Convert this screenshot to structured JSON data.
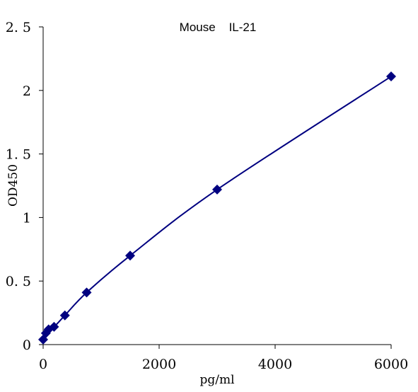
{
  "chart_data": {
    "type": "scatter",
    "title": "Mouse    IL-21",
    "xlabel": "pg/ml",
    "ylabel": "OD450",
    "xlim": [
      0,
      6000
    ],
    "ylim": [
      0,
      2.5
    ],
    "x_ticks": [
      0,
      2000,
      4000,
      6000
    ],
    "x_tick_labels": [
      "0",
      "2000",
      "4000",
      "6000"
    ],
    "y_ticks": [
      0,
      0.5,
      1,
      1.5,
      2,
      2.5
    ],
    "y_tick_labels": [
      "0",
      "0. 5",
      "1",
      "1. 5",
      "2",
      "2. 5"
    ],
    "grid": false,
    "legend": "none",
    "marker": "diamond",
    "color": "#000080",
    "fit_line": true,
    "series": [
      {
        "x": [
          0,
          47,
          94,
          188,
          375,
          750,
          1500,
          3000,
          6000
        ],
        "y": [
          0.04,
          0.09,
          0.12,
          0.14,
          0.23,
          0.41,
          0.7,
          1.22,
          2.11
        ]
      }
    ]
  }
}
